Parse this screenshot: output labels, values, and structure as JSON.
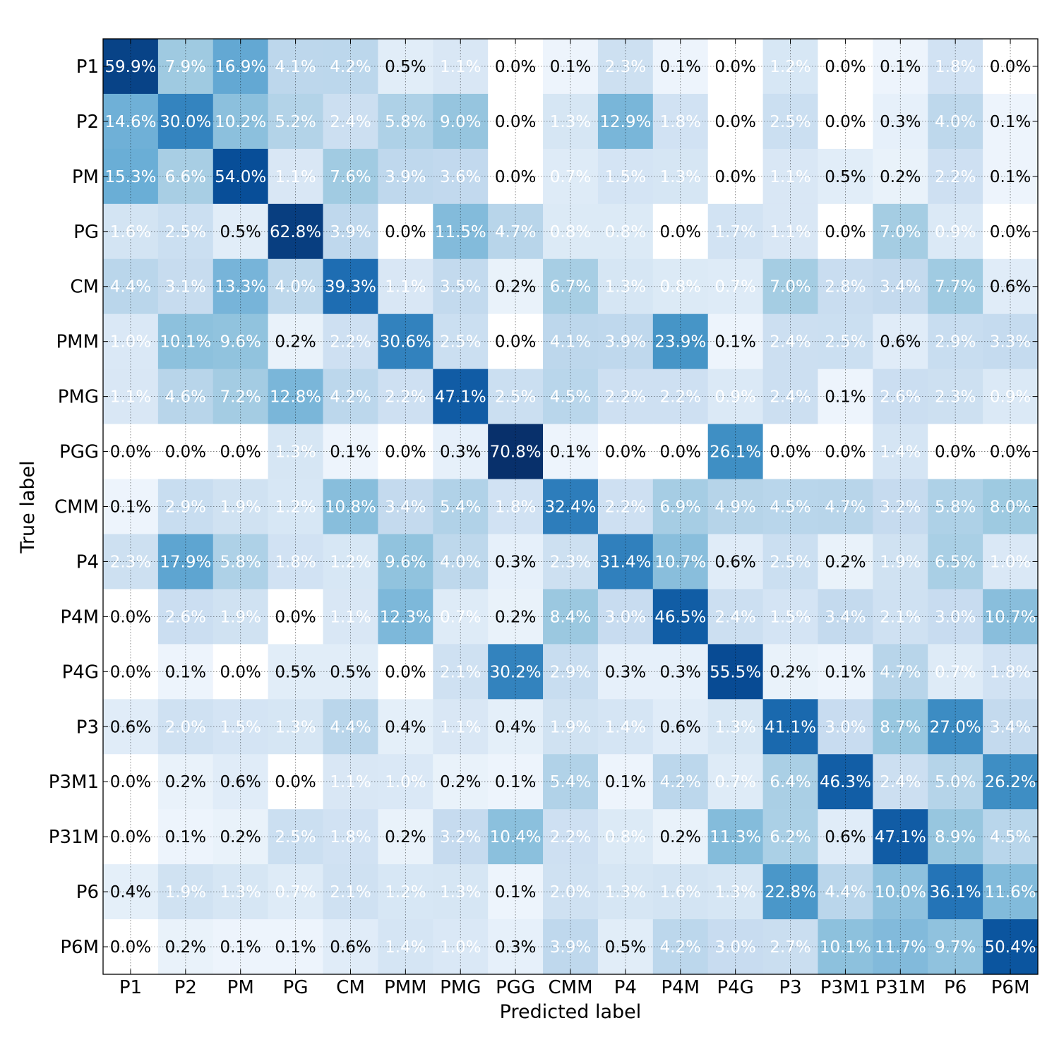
{
  "chart_data": {
    "type": "heatmap",
    "title": "",
    "xlabel": "Predicted label",
    "ylabel": "True label",
    "colormap": "Blues",
    "value_range": [
      0,
      70.8
    ],
    "grid": true,
    "x_categories": [
      "P1",
      "P2",
      "PM",
      "PG",
      "CM",
      "PMM",
      "PMG",
      "PGG",
      "CMM",
      "P4",
      "P4M",
      "P4G",
      "P3",
      "P3M1",
      "P31M",
      "P6",
      "P6M"
    ],
    "y_categories": [
      "P1",
      "P2",
      "PM",
      "PG",
      "CM",
      "PMM",
      "PMG",
      "PGG",
      "CMM",
      "P4",
      "P4M",
      "P4G",
      "P3",
      "P3M1",
      "P31M",
      "P6",
      "P6M"
    ],
    "values": [
      [
        59.9,
        7.9,
        16.9,
        4.1,
        4.2,
        0.5,
        1.1,
        0.0,
        0.1,
        2.3,
        0.1,
        0.0,
        1.2,
        0.0,
        0.1,
        1.8,
        0.0
      ],
      [
        14.6,
        30.0,
        10.2,
        5.2,
        2.4,
        5.8,
        9.0,
        0.0,
        1.3,
        12.9,
        1.8,
        0.0,
        2.5,
        0.0,
        0.3,
        4.0,
        0.1
      ],
      [
        15.3,
        6.6,
        54.0,
        1.1,
        7.6,
        3.9,
        3.6,
        0.0,
        0.7,
        1.5,
        1.3,
        0.0,
        1.1,
        0.5,
        0.2,
        2.2,
        0.1
      ],
      [
        1.6,
        2.5,
        0.5,
        62.8,
        3.9,
        0.0,
        11.5,
        4.7,
        0.8,
        0.8,
        0.0,
        1.7,
        1.1,
        0.0,
        7.0,
        0.9,
        0.0
      ],
      [
        4.4,
        3.1,
        13.3,
        4.0,
        39.3,
        1.1,
        3.5,
        0.2,
        6.7,
        1.3,
        0.8,
        0.7,
        7.0,
        2.8,
        3.4,
        7.7,
        0.6
      ],
      [
        1.0,
        10.1,
        9.6,
        0.2,
        2.2,
        30.6,
        2.5,
        0.0,
        4.1,
        3.9,
        23.9,
        0.1,
        2.4,
        2.5,
        0.6,
        2.9,
        3.3
      ],
      [
        1.1,
        4.6,
        7.2,
        12.8,
        4.2,
        2.2,
        47.1,
        2.5,
        4.5,
        2.2,
        2.2,
        0.9,
        2.4,
        0.1,
        2.6,
        2.3,
        0.9
      ],
      [
        0.0,
        0.0,
        0.0,
        1.3,
        0.1,
        0.0,
        0.3,
        70.8,
        0.1,
        0.0,
        0.0,
        26.1,
        0.0,
        0.0,
        1.4,
        0.0,
        0.0
      ],
      [
        0.1,
        2.9,
        1.9,
        1.2,
        10.8,
        3.4,
        5.4,
        1.8,
        32.4,
        2.2,
        6.9,
        4.9,
        4.5,
        4.7,
        3.2,
        5.8,
        8.0
      ],
      [
        2.3,
        17.9,
        5.8,
        1.8,
        1.2,
        9.6,
        4.0,
        0.3,
        2.3,
        31.4,
        10.7,
        0.6,
        2.5,
        0.2,
        1.9,
        6.5,
        1.0
      ],
      [
        0.0,
        2.6,
        1.9,
        0.0,
        1.1,
        12.3,
        0.7,
        0.2,
        8.4,
        3.0,
        46.5,
        2.4,
        1.5,
        3.4,
        2.1,
        3.0,
        10.7
      ],
      [
        0.0,
        0.1,
        0.0,
        0.5,
        0.5,
        0.0,
        2.1,
        30.2,
        2.9,
        0.3,
        0.3,
        55.5,
        0.2,
        0.1,
        4.7,
        0.7,
        1.8
      ],
      [
        0.6,
        2.0,
        1.5,
        1.3,
        4.4,
        0.4,
        1.1,
        0.4,
        1.9,
        1.4,
        0.6,
        1.3,
        41.1,
        3.0,
        8.7,
        27.0,
        3.4
      ],
      [
        0.0,
        0.2,
        0.6,
        0.0,
        1.1,
        1.0,
        0.2,
        0.1,
        5.4,
        0.1,
        4.2,
        0.7,
        6.4,
        46.3,
        2.4,
        5.0,
        26.2
      ],
      [
        0.0,
        0.1,
        0.2,
        2.5,
        1.8,
        0.2,
        3.2,
        10.4,
        2.2,
        0.8,
        0.2,
        11.3,
        6.2,
        0.6,
        47.1,
        8.9,
        4.5
      ],
      [
        0.4,
        1.9,
        1.3,
        0.7,
        2.1,
        1.2,
        1.3,
        0.1,
        2.0,
        1.3,
        1.6,
        1.3,
        22.8,
        4.4,
        10.0,
        36.1,
        11.6
      ],
      [
        0.0,
        0.2,
        0.1,
        0.1,
        0.6,
        1.4,
        1.0,
        0.3,
        3.9,
        0.5,
        4.2,
        3.0,
        2.7,
        10.1,
        11.7,
        9.7,
        50.4
      ]
    ],
    "value_suffix": "%"
  }
}
